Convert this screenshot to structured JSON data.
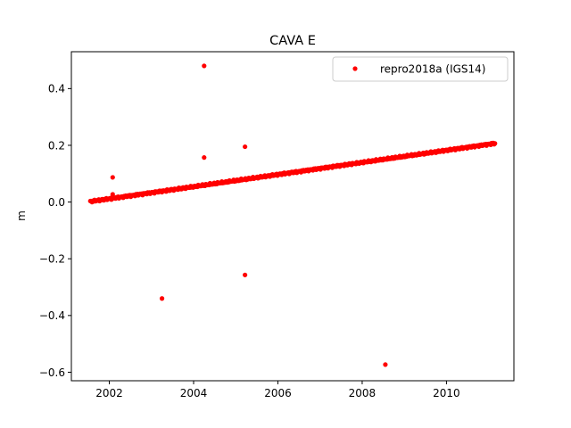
{
  "chart_data": {
    "type": "scatter",
    "title": "CAVA E",
    "xlabel": "",
    "ylabel": "m",
    "xlim": [
      2001.1,
      2011.6
    ],
    "ylim": [
      -0.63,
      0.53
    ],
    "x_ticks": [
      2002,
      2004,
      2006,
      2008,
      2010
    ],
    "y_ticks": [
      -0.6,
      -0.4,
      -0.2,
      0.0,
      0.2,
      0.4
    ],
    "x_tick_labels": [
      "2002",
      "2004",
      "2006",
      "2008",
      "2010"
    ],
    "y_tick_labels": [
      "−0.6",
      "−0.4",
      "−0.2",
      "0.0",
      "0.2",
      "0.4"
    ],
    "grid": false,
    "legend_position": "top-right",
    "series": [
      {
        "name": "repro2018a (IGS14)",
        "color": "#ff0000",
        "marker": "dot",
        "trend": {
          "x_start": 2001.55,
          "y_start": 0.002,
          "x_end": 2011.15,
          "y_end": 0.207
        },
        "outliers": [
          {
            "x": 2002.08,
            "y": 0.087
          },
          {
            "x": 2002.08,
            "y": 0.027
          },
          {
            "x": 2003.25,
            "y": -0.34
          },
          {
            "x": 2004.25,
            "y": 0.48
          },
          {
            "x": 2004.25,
            "y": 0.157
          },
          {
            "x": 2005.22,
            "y": 0.195
          },
          {
            "x": 2005.22,
            "y": -0.257
          },
          {
            "x": 2008.55,
            "y": -0.573
          }
        ]
      }
    ]
  }
}
